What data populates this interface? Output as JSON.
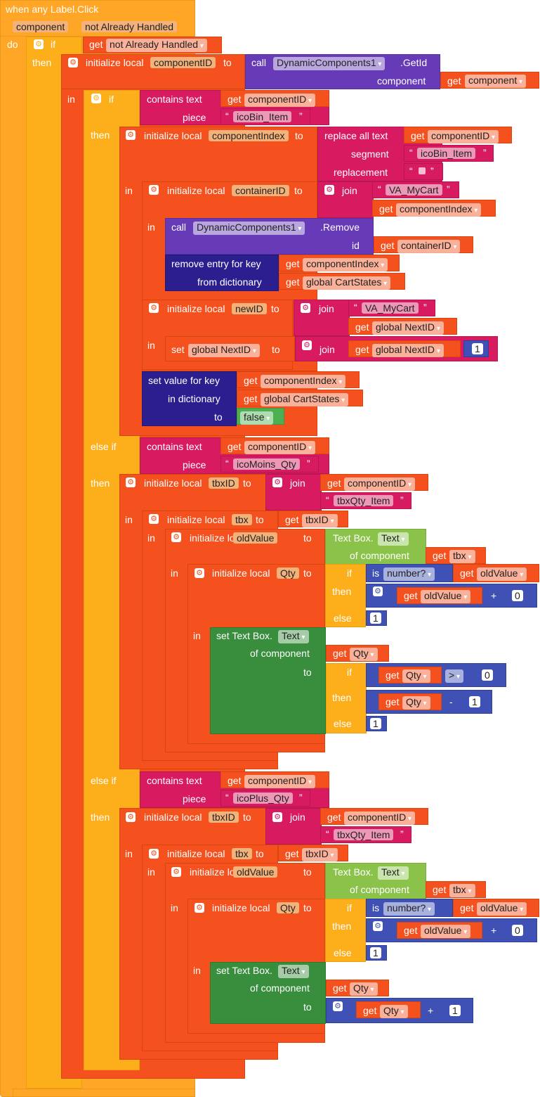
{
  "event": {
    "title": "when any Label.Click",
    "param1": "component",
    "param2": "not Already Handled",
    "do": "do"
  },
  "kw": {
    "if": "if",
    "then": "then",
    "else": "else",
    "else_if": "else if",
    "in": "in",
    "to": "to",
    "get": "get",
    "set": "set",
    "call": "call",
    "initialize_local": "initialize local",
    "contains_text": "contains  text",
    "piece": "piece",
    "replace_all_text": "replace all text",
    "segment": "segment",
    "replacement": "replacement",
    "join": "join",
    "id": "id",
    "component": "component",
    "remove_entry_for_key": "remove entry for key",
    "from_dictionary": "from dictionary",
    "set_value_for_key": "set value for key",
    "in_dictionary": "in dictionary",
    "is": "is",
    "number_q": "number?",
    "of_component": "of component",
    "plus": "+",
    "minus": "-",
    "gt": ">",
    "false": "false"
  },
  "names": {
    "componentID": "componentID",
    "componentIndex": "componentIndex",
    "containerID": "containerID",
    "newID": "newID",
    "tbxID": "tbxID",
    "tbx": "tbx",
    "oldValue": "oldValue",
    "Qty": "Qty",
    "not_already_handled": "not Already Handled",
    "component": "component",
    "global_nextid": "global NextID",
    "global_cartstates": "global CartStates",
    "dyn": "DynamicComponents1",
    "getid": ".GetId",
    "remove": ".Remove",
    "textbox": "Text Box.",
    "text_prop": "Text",
    "set_textbox": "set Text Box."
  },
  "strings": {
    "icoBin": "icoBin_Item",
    "va_mycart": "VA_MyCart",
    "icoMoins": "icoMoins_Qty",
    "tbxQty": "tbxQty_Item",
    "icoPlus": "icoPlus_Qty"
  },
  "numbers": {
    "zero": "0",
    "one": "1"
  },
  "colors": {
    "event": "#ffa626",
    "control": "#fdaf1b",
    "variable": "#f4511e",
    "text": "#d81b60",
    "component": "#673ab7",
    "dictionary": "#2b1f8f",
    "math": "#3f51b5",
    "logic": "#4caf50",
    "textbox": "#8bc34a"
  }
}
